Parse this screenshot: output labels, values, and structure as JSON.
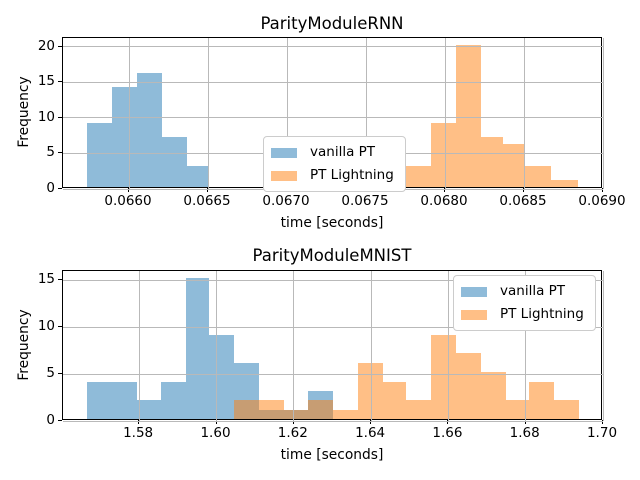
{
  "figure_background": "#ffffff",
  "grid_color": "#b9b9b9",
  "spine_color": "#000000",
  "chart_data": [
    {
      "type": "bar",
      "subtype": "histogram",
      "title": "ParityModuleRNN",
      "xlabel": "time [seconds]",
      "ylabel": "Frequency",
      "xlim": [
        0.065582,
        0.069
      ],
      "ylim": [
        0,
        21.2
      ],
      "grid": true,
      "legend_position": "center",
      "xticks": [
        {
          "v": 0.066,
          "label": "0.0660"
        },
        {
          "v": 0.0665,
          "label": "0.0665"
        },
        {
          "v": 0.067,
          "label": "0.0670"
        },
        {
          "v": 0.0675,
          "label": "0.0675"
        },
        {
          "v": 0.068,
          "label": "0.0680"
        },
        {
          "v": 0.0685,
          "label": "0.0685"
        },
        {
          "v": 0.069,
          "label": "0.0690"
        }
      ],
      "yticks": [
        {
          "v": 0,
          "label": "0"
        },
        {
          "v": 5,
          "label": "5"
        },
        {
          "v": 10,
          "label": "10"
        },
        {
          "v": 15,
          "label": "15"
        },
        {
          "v": 20,
          "label": "20"
        }
      ],
      "series": [
        {
          "name": "vanilla PT",
          "color": "rgba(31,119,180,0.5)",
          "bars": [
            {
              "x0": 0.065734,
              "x1": 0.065892,
              "h": 9
            },
            {
              "x0": 0.065892,
              "x1": 0.066051,
              "h": 14
            },
            {
              "x0": 0.066051,
              "x1": 0.066209,
              "h": 16
            },
            {
              "x0": 0.066209,
              "x1": 0.066367,
              "h": 7
            },
            {
              "x0": 0.066367,
              "x1": 0.066506,
              "h": 3
            }
          ]
        },
        {
          "name": "PT Lightning",
          "color": "rgba(255,127,14,0.5)",
          "bars": [
            {
              "x0": 0.067753,
              "x1": 0.067911,
              "h": 3
            },
            {
              "x0": 0.067911,
              "x1": 0.06807,
              "h": 9
            },
            {
              "x0": 0.06807,
              "x1": 0.068228,
              "h": 20
            },
            {
              "x0": 0.068228,
              "x1": 0.068367,
              "h": 7
            },
            {
              "x0": 0.068367,
              "x1": 0.0685,
              "h": 6
            },
            {
              "x0": 0.0685,
              "x1": 0.068671,
              "h": 3
            },
            {
              "x0": 0.068671,
              "x1": 0.068842,
              "h": 1
            }
          ]
        }
      ]
    },
    {
      "type": "bar",
      "subtype": "histogram",
      "title": "ParityModuleMNIST",
      "xlabel": "time [seconds]",
      "ylabel": "Frequency",
      "xlim": [
        1.5603,
        1.7
      ],
      "ylim": [
        0,
        16
      ],
      "grid": true,
      "legend_position": "upper right",
      "xticks": [
        {
          "v": 1.58,
          "label": "1.58"
        },
        {
          "v": 1.6,
          "label": "1.60"
        },
        {
          "v": 1.62,
          "label": "1.62"
        },
        {
          "v": 1.64,
          "label": "1.64"
        },
        {
          "v": 1.66,
          "label": "1.66"
        },
        {
          "v": 1.68,
          "label": "1.68"
        },
        {
          "v": 1.7,
          "label": "1.70"
        }
      ],
      "yticks": [
        {
          "v": 0,
          "label": "0"
        },
        {
          "v": 5,
          "label": "5"
        },
        {
          "v": 10,
          "label": "10"
        },
        {
          "v": 15,
          "label": "15"
        }
      ],
      "series": [
        {
          "name": "vanilla PT",
          "color": "rgba(31,119,180,0.5)",
          "bars": [
            {
              "x0": 1.5666,
              "x1": 1.5795,
              "h": 4
            },
            {
              "x0": 1.5795,
              "x1": 1.5857,
              "h": 2
            },
            {
              "x0": 1.5857,
              "x1": 1.5921,
              "h": 4
            },
            {
              "x0": 1.5921,
              "x1": 1.5981,
              "h": 15
            },
            {
              "x0": 1.5981,
              "x1": 1.6046,
              "h": 9
            },
            {
              "x0": 1.6046,
              "x1": 1.611,
              "h": 6
            },
            {
              "x0": 1.611,
              "x1": 1.6175,
              "h": 1
            },
            {
              "x0": 1.6175,
              "x1": 1.6237,
              "h": 1
            },
            {
              "x0": 1.6237,
              "x1": 1.6302,
              "h": 3
            }
          ]
        },
        {
          "name": "PT Lightning",
          "color": "rgba(255,127,14,0.5)",
          "bars": [
            {
              "x0": 1.6046,
              "x1": 1.611,
              "h": 2
            },
            {
              "x0": 1.611,
              "x1": 1.6175,
              "h": 2
            },
            {
              "x0": 1.6175,
              "x1": 1.6237,
              "h": 1
            },
            {
              "x0": 1.6237,
              "x1": 1.6302,
              "h": 2
            },
            {
              "x0": 1.6302,
              "x1": 1.6366,
              "h": 1
            },
            {
              "x0": 1.6366,
              "x1": 1.6431,
              "h": 6
            },
            {
              "x0": 1.6431,
              "x1": 1.649,
              "h": 4
            },
            {
              "x0": 1.649,
              "x1": 1.6555,
              "h": 2
            },
            {
              "x0": 1.6555,
              "x1": 1.662,
              "h": 9
            },
            {
              "x0": 1.662,
              "x1": 1.6684,
              "h": 7
            },
            {
              "x0": 1.6684,
              "x1": 1.6749,
              "h": 5
            },
            {
              "x0": 1.6749,
              "x1": 1.6809,
              "h": 2
            },
            {
              "x0": 1.6809,
              "x1": 1.6873,
              "h": 4
            },
            {
              "x0": 1.6873,
              "x1": 1.6938,
              "h": 2
            }
          ]
        }
      ]
    }
  ]
}
